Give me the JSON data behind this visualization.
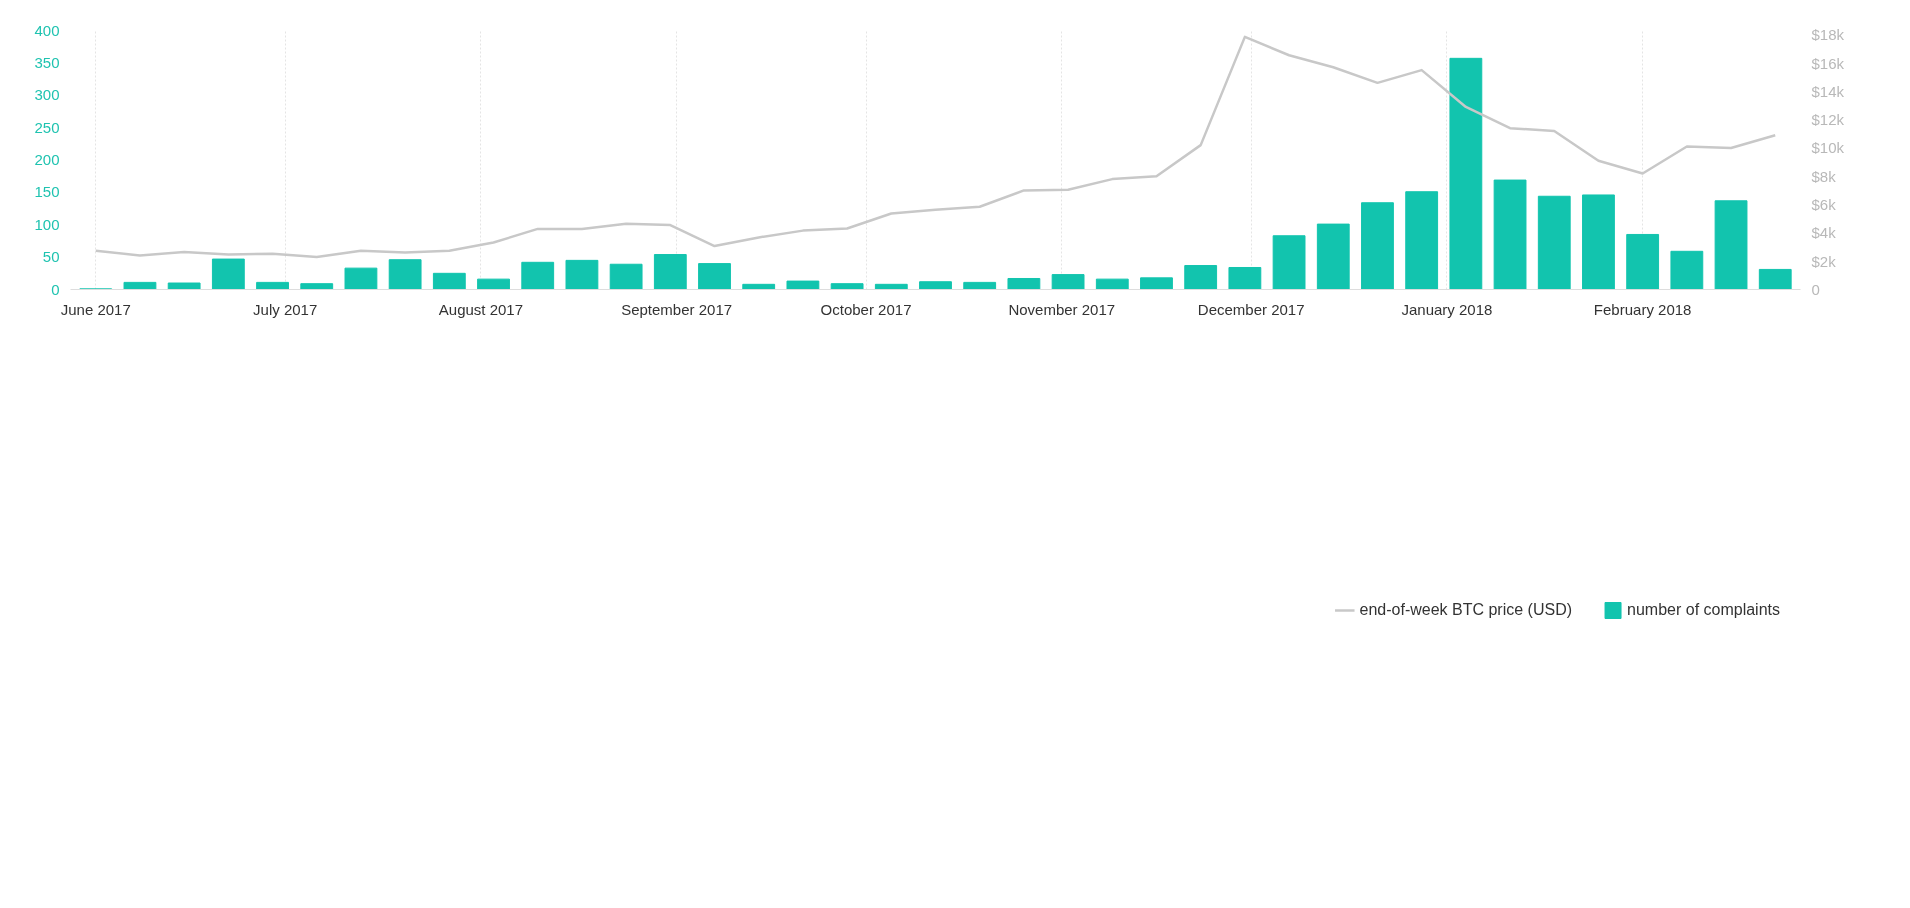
{
  "chart_data": {
    "type": "bar",
    "x": [
      "2017-06-01",
      "2017-06-08",
      "2017-06-15",
      "2017-06-22",
      "2017-06-29",
      "2017-07-06",
      "2017-07-13",
      "2017-07-20",
      "2017-07-27",
      "2017-08-03",
      "2017-08-10",
      "2017-08-17",
      "2017-08-24",
      "2017-08-31",
      "2017-09-07",
      "2017-09-14",
      "2017-09-21",
      "2017-09-28",
      "2017-10-05",
      "2017-10-12",
      "2017-10-19",
      "2017-10-26",
      "2017-11-02",
      "2017-11-09",
      "2017-11-16",
      "2017-11-23",
      "2017-11-30",
      "2017-12-07",
      "2017-12-14",
      "2017-12-21",
      "2017-12-28",
      "2018-01-04",
      "2018-01-11",
      "2018-01-18",
      "2018-01-25",
      "2018-02-01",
      "2018-02-08",
      "2018-02-15",
      "2018-02-22"
    ],
    "series": [
      {
        "name": "end-of-week BTC price (USD)",
        "type": "line",
        "axis": "y2",
        "color": "#c8c8c8",
        "values": [
          2740,
          2410,
          2650,
          2470,
          2530,
          2290,
          2740,
          2620,
          2740,
          3320,
          4280,
          4280,
          4640,
          4550,
          3070,
          3680,
          4160,
          4310,
          5370,
          5640,
          5850,
          7000,
          7050,
          7800,
          8000,
          10200,
          17850,
          16550,
          15700,
          14600,
          15500,
          12900,
          11400,
          11200,
          9100,
          8200,
          10100,
          10000,
          10900
        ]
      },
      {
        "name": "number of complaints",
        "color": "#12c4ae",
        "values": [
          1,
          11,
          10,
          47,
          11,
          9,
          33,
          46,
          25,
          16,
          42,
          45,
          39,
          54,
          40,
          8,
          13,
          9,
          8,
          12,
          11,
          17,
          23,
          16,
          18,
          37,
          34,
          83,
          101,
          134,
          151,
          357,
          169,
          144,
          146,
          85,
          59,
          137,
          31
        ]
      }
    ],
    "xlim": [
      "2017-05-28",
      "2018-02-26"
    ],
    "xticks": [
      {
        "value": "2017-06-01",
        "label": "June 2017"
      },
      {
        "value": "2017-07-01",
        "label": "July 2017"
      },
      {
        "value": "2017-08-01",
        "label": "August 2017"
      },
      {
        "value": "2017-09-01",
        "label": "September 2017"
      },
      {
        "value": "2017-10-01",
        "label": "October 2017"
      },
      {
        "value": "2017-11-01",
        "label": "November 2017"
      },
      {
        "value": "2017-12-01",
        "label": "December 2017"
      },
      {
        "value": "2018-01-01",
        "label": "January 2018"
      },
      {
        "value": "2018-02-01",
        "label": "February 2018"
      }
    ],
    "ylim": [
      0,
      400
    ],
    "yticks": [
      0,
      50,
      100,
      150,
      200,
      250,
      300,
      350,
      400
    ],
    "y2lim": [
      0,
      18300
    ],
    "y2ticks": [
      0,
      {
        "value": 2000,
        "label": "$2k"
      },
      {
        "value": 4000,
        "label": "$4k"
      },
      {
        "value": 6000,
        "label": "$6k"
      },
      {
        "value": 8000,
        "label": "$8k"
      },
      {
        "value": 10000,
        "label": "$10k"
      },
      {
        "value": 12000,
        "label": "$12k"
      },
      {
        "value": 14000,
        "label": "$14k"
      },
      {
        "value": 16000,
        "label": "$16k"
      },
      {
        "value": 18000,
        "label": "$18k"
      }
    ],
    "grid": "x",
    "legend": "bottom right"
  }
}
